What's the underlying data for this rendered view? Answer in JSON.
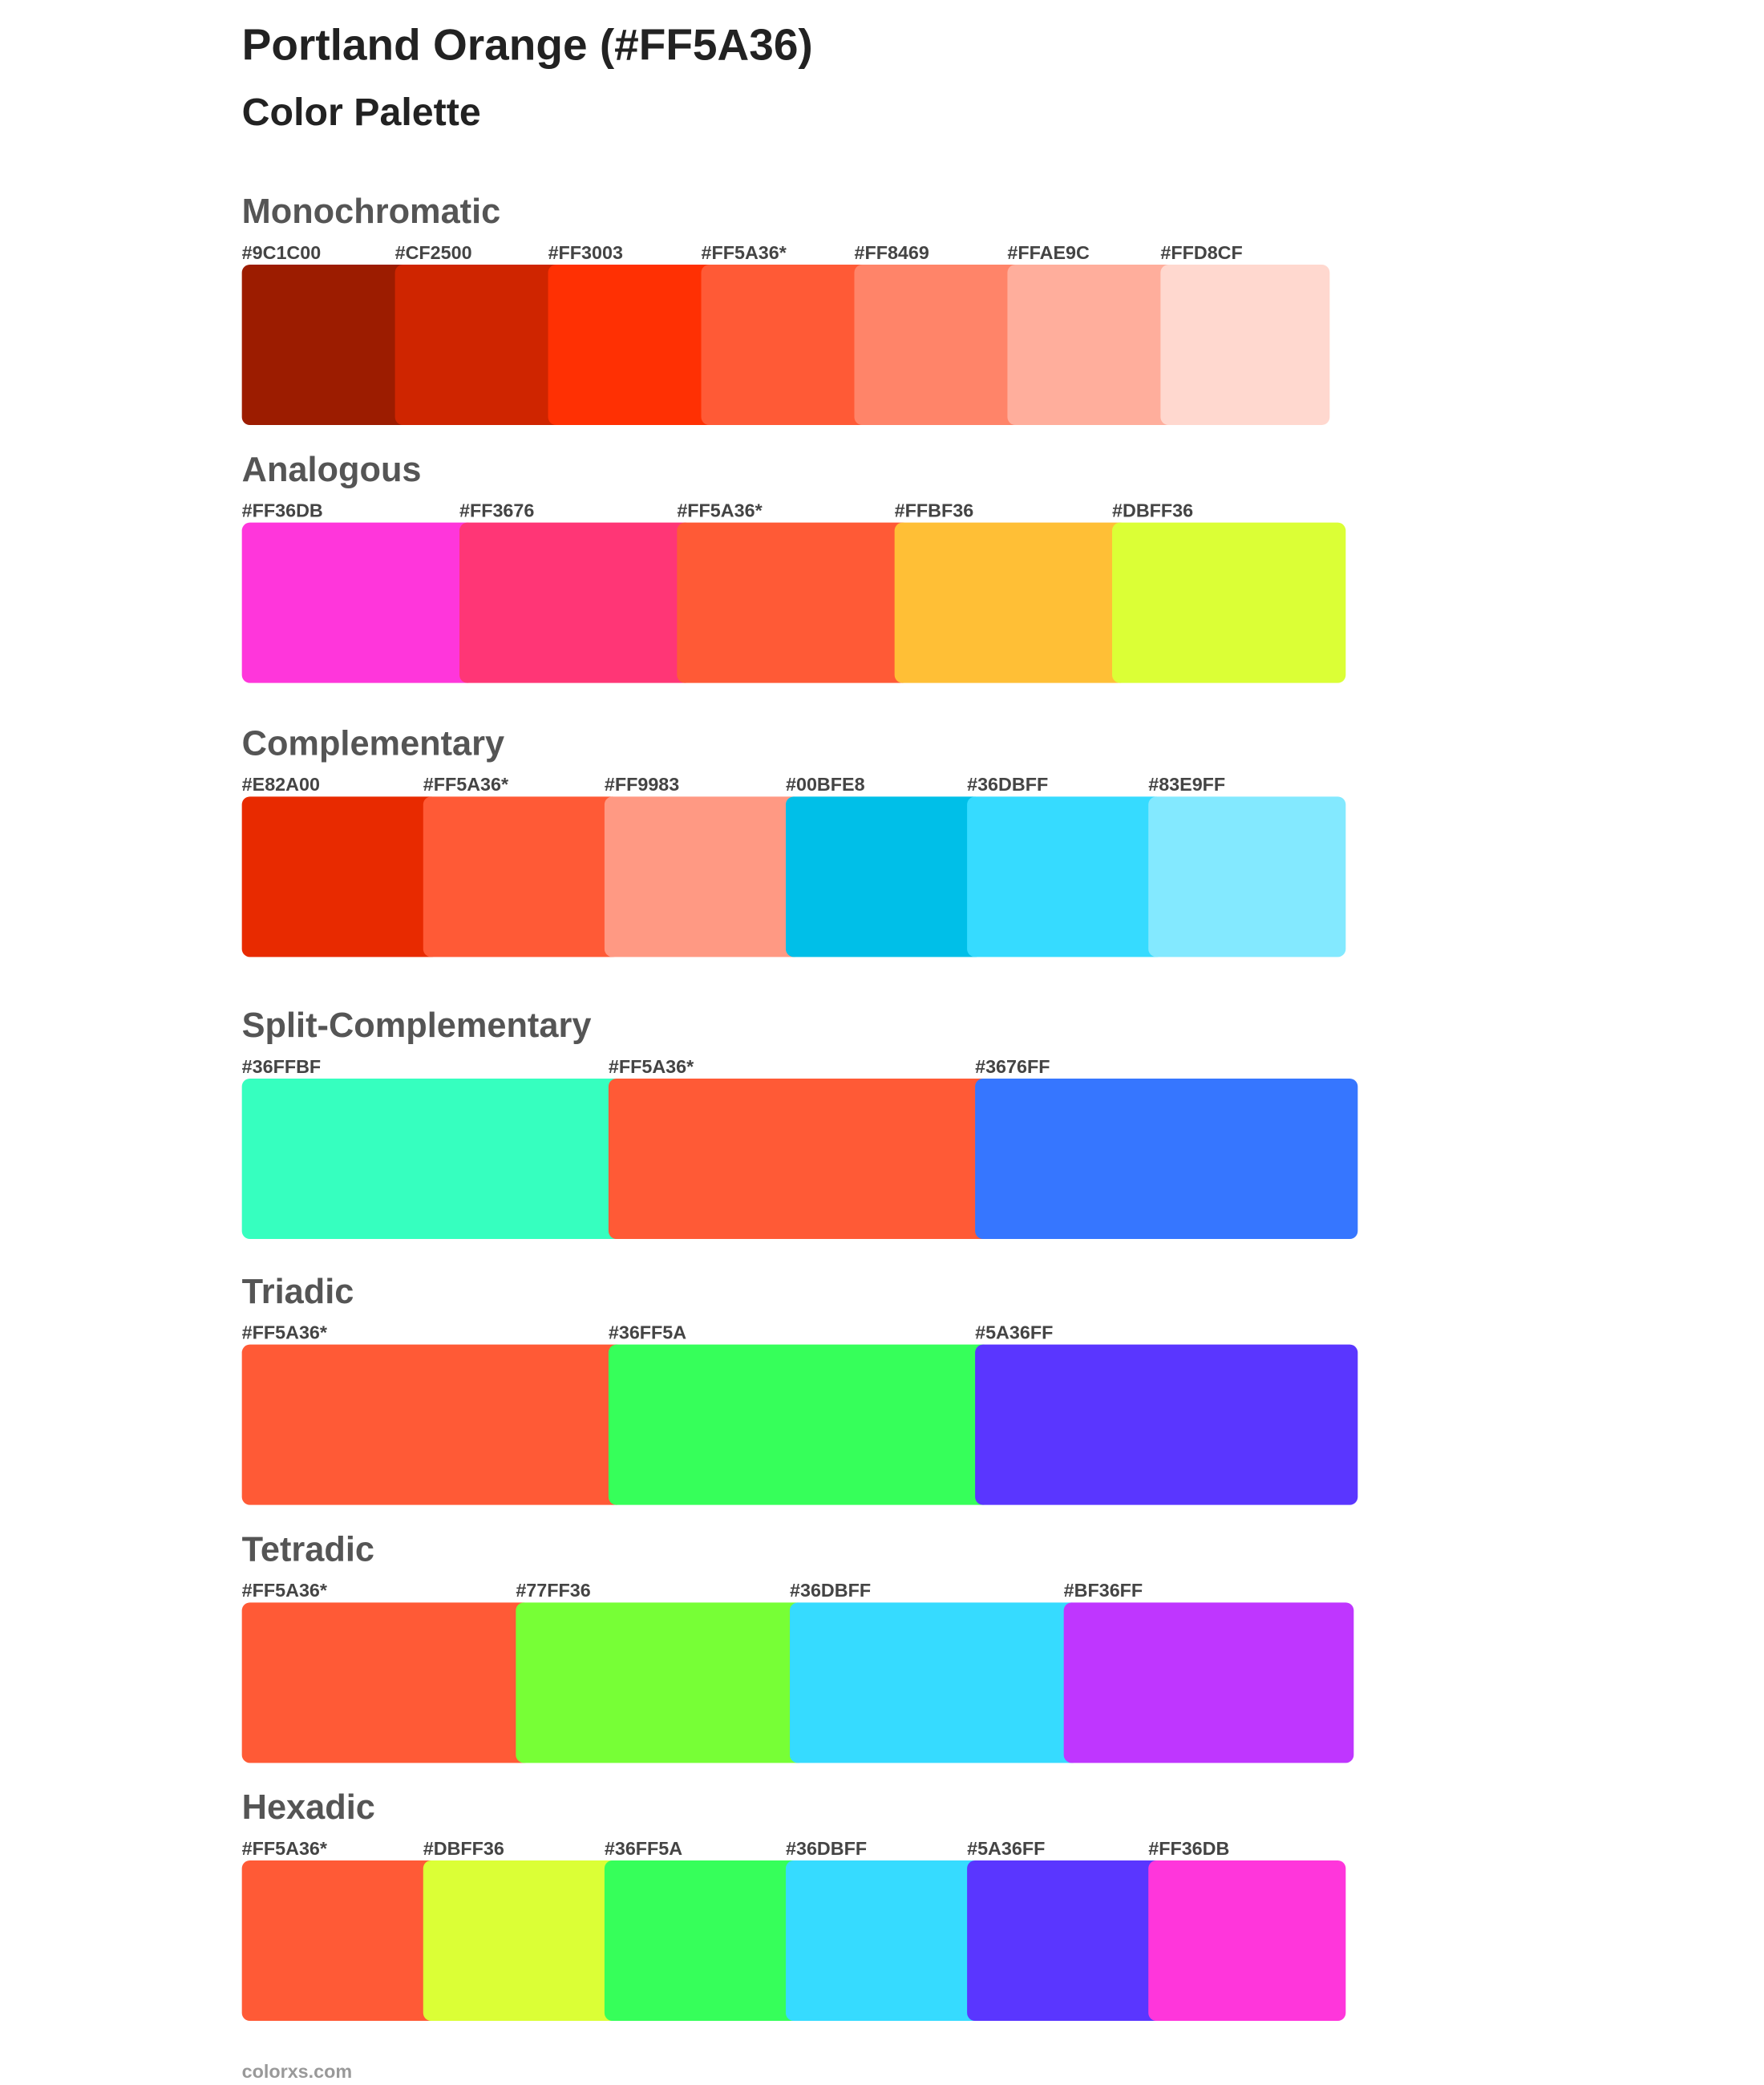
{
  "header": {
    "title": "Portland Orange (#FF5A36)",
    "subtitle": "Color Palette"
  },
  "sections": [
    {
      "name": "Monochromatic",
      "swatches": [
        {
          "label": "#9C1C00",
          "color": "#9C1C00"
        },
        {
          "label": "#CF2500",
          "color": "#CF2500"
        },
        {
          "label": "#FF3003",
          "color": "#FF3003"
        },
        {
          "label": "#FF5A36*",
          "color": "#FF5A36"
        },
        {
          "label": "#FF8469",
          "color": "#FF8469"
        },
        {
          "label": "#FFAE9C",
          "color": "#FFAE9C"
        },
        {
          "label": "#FFD8CF",
          "color": "#FFD8CF"
        }
      ]
    },
    {
      "name": "Analogous",
      "swatches": [
        {
          "label": "#FF36DB",
          "color": "#FF36DB"
        },
        {
          "label": "#FF3676",
          "color": "#FF3676"
        },
        {
          "label": "#FF5A36*",
          "color": "#FF5A36"
        },
        {
          "label": "#FFBF36",
          "color": "#FFBF36"
        },
        {
          "label": "#DBFF36",
          "color": "#DBFF36"
        }
      ]
    },
    {
      "name": "Complementary",
      "swatches": [
        {
          "label": "#E82A00",
          "color": "#E82A00"
        },
        {
          "label": "#FF5A36*",
          "color": "#FF5A36"
        },
        {
          "label": "#FF9983",
          "color": "#FF9983"
        },
        {
          "label": "#00BFE8",
          "color": "#00BFE8"
        },
        {
          "label": "#36DBFF",
          "color": "#36DBFF"
        },
        {
          "label": "#83E9FF",
          "color": "#83E9FF"
        }
      ]
    },
    {
      "name": "Split-Complementary",
      "swatches": [
        {
          "label": "#36FFBF",
          "color": "#36FFBF"
        },
        {
          "label": "#FF5A36*",
          "color": "#FF5A36"
        },
        {
          "label": "#3676FF",
          "color": "#3676FF"
        }
      ]
    },
    {
      "name": "Triadic",
      "swatches": [
        {
          "label": "#FF5A36*",
          "color": "#FF5A36"
        },
        {
          "label": "#36FF5A",
          "color": "#36FF5A"
        },
        {
          "label": "#5A36FF",
          "color": "#5A36FF"
        }
      ]
    },
    {
      "name": "Tetradic",
      "swatches": [
        {
          "label": "#FF5A36*",
          "color": "#FF5A36"
        },
        {
          "label": "#77FF36",
          "color": "#77FF36"
        },
        {
          "label": "#36DBFF",
          "color": "#36DBFF"
        },
        {
          "label": "#BF36FF",
          "color": "#BF36FF"
        }
      ]
    },
    {
      "name": "Hexadic",
      "swatches": [
        {
          "label": "#FF5A36*",
          "color": "#FF5A36"
        },
        {
          "label": "#DBFF36",
          "color": "#DBFF36"
        },
        {
          "label": "#36FF5A",
          "color": "#36FF5A"
        },
        {
          "label": "#36DBFF",
          "color": "#36DBFF"
        },
        {
          "label": "#5A36FF",
          "color": "#5A36FF"
        },
        {
          "label": "#FF36DB",
          "color": "#FF36DB"
        }
      ]
    }
  ],
  "footer": "colorxs.com"
}
